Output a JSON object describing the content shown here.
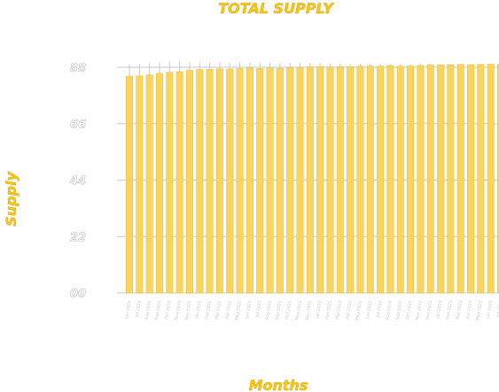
{
  "chart_data": {
    "type": "bar",
    "title": "TOTAL SUPPLY",
    "xlabel": "Months",
    "ylabel": "Supply",
    "ylim": [
      0,
      88
    ],
    "yticks": [
      "00",
      "22",
      "44",
      "66",
      "88"
    ],
    "grid": true,
    "categories": [
      "Jun-2020",
      "Jul-2020",
      "Aug-2020",
      "Sep-2020",
      "Oct-2020",
      "Nov-2020",
      "Dec-2020",
      "Jan-2021",
      "Feb-2021",
      "Mar-2021",
      "Apr-2021",
      "May-2021",
      "Jun-2021",
      "Jul-2021",
      "Aug-2021",
      "Sep-2021",
      "Oct-2021",
      "Nov-2021",
      "Dec-2021",
      "Jan-2022",
      "Feb-2022",
      "Mar-2022",
      "Apr-2022",
      "May-2022",
      "Jun-2022",
      "Jul-2022",
      "Aug-2022",
      "Sep-2022",
      "Oct-2022",
      "Nov-2022",
      "Dec-2022",
      "Jan-2023",
      "Feb-2023",
      "Mar-2023",
      "Apr-2023",
      "May-2023",
      "Jun-2023",
      "Jul-2023"
    ],
    "values": [
      84.5,
      84.6,
      85.0,
      85.6,
      86.0,
      86.3,
      86.8,
      87.1,
      87.2,
      87.4,
      87.3,
      87.6,
      87.7,
      87.5,
      87.7,
      87.6,
      87.9,
      87.8,
      88.2,
      88.3,
      88.1,
      88.3,
      88.2,
      88.4,
      88.5,
      88.4,
      88.6,
      88.4,
      88.5,
      88.7,
      88.9,
      88.9,
      89.0,
      89.1,
      89.0,
      89.1,
      89.2,
      89.2
    ],
    "error_upper": [
      89.0,
      89.5,
      89.6,
      90.0,
      90.3,
      90.2,
      90.0,
      89.8,
      89.7,
      89.8,
      89.6,
      89.7,
      89.8,
      89.7,
      89.7,
      89.6,
      89.7,
      89.6,
      89.7,
      89.6,
      89.5,
      89.5,
      89.4,
      89.4,
      89.4,
      89.3,
      89.3,
      89.3,
      89.2,
      89.2,
      89.2,
      89.2,
      89.2,
      89.2,
      89.2,
      89.2,
      89.2,
      89.2
    ],
    "colors": {
      "bar": "#f9d55e",
      "bar_edge": "#e7b93a",
      "title": "#f5c518",
      "grid": "#d2d2d2"
    }
  }
}
